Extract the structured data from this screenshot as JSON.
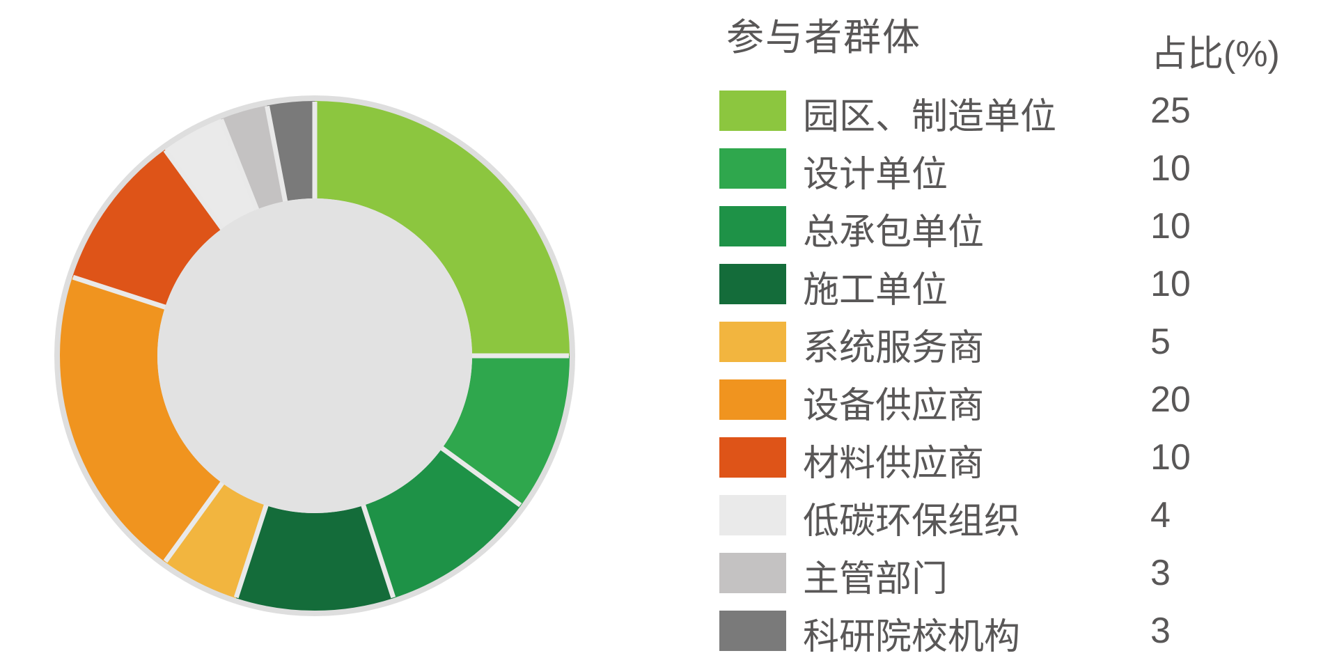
{
  "legend": {
    "title": "参与者群体",
    "value_header": "占比(%)",
    "items": [
      {
        "label": "园区、制造单位",
        "value": "25",
        "color": "#8CC63F"
      },
      {
        "label": "设计单位",
        "value": "10",
        "color": "#2FA74D"
      },
      {
        "label": "总承包单位",
        "value": "10",
        "color": "#1E9247"
      },
      {
        "label": "施工单位",
        "value": "10",
        "color": "#146C3A"
      },
      {
        "label": "系统服务商",
        "value": "5",
        "color": "#F2B53F"
      },
      {
        "label": "设备供应商",
        "value": "20",
        "color": "#F0941F"
      },
      {
        "label": "材料供应商",
        "value": "10",
        "color": "#DE5418"
      },
      {
        "label": "低碳环保组织",
        "value": "4",
        "color": "#EAEAEA"
      },
      {
        "label": "主管部门",
        "value": "3",
        "color": "#C4C2C2"
      },
      {
        "label": "科研院校机构",
        "value": "3",
        "color": "#7A7A7A"
      }
    ]
  },
  "chart_data": {
    "type": "pie",
    "variant": "donut",
    "title": "参与者群体",
    "unit": "%",
    "categories": [
      "园区、制造单位",
      "设计单位",
      "总承包单位",
      "施工单位",
      "系统服务商",
      "设备供应商",
      "材料供应商",
      "低碳环保组织",
      "主管部门",
      "科研院校机构"
    ],
    "values": [
      25,
      10,
      10,
      10,
      5,
      20,
      10,
      4,
      3,
      3
    ],
    "colors": [
      "#8CC63F",
      "#2FA74D",
      "#1E9247",
      "#146C3A",
      "#F2B53F",
      "#F0941F",
      "#DE5418",
      "#EAEAEA",
      "#C4C2C2",
      "#7A7A7A"
    ],
    "start_angle_deg": 0,
    "direction": "clockwise",
    "inner_radius_ratio": 0.62,
    "legend_position": "right",
    "ring_color": "#DEDEDE",
    "center_color": "#E2E2E2",
    "separator_color": "#E9E9E9"
  }
}
